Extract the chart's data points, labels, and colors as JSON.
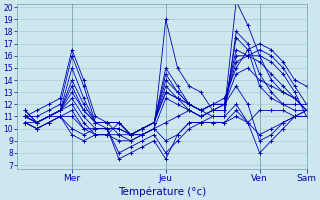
{
  "xlabel": "Température (°c)",
  "bg_color": "#cce8ee",
  "grid_color": "#aacdd5",
  "line_color": "#0000bb",
  "marker": "+",
  "ylim": [
    7,
    20
  ],
  "yticks": [
    7,
    8,
    9,
    10,
    11,
    12,
    13,
    14,
    15,
    16,
    17,
    18,
    19,
    20
  ],
  "xlim": [
    0,
    72
  ],
  "day_ticks": [
    12,
    36,
    60,
    72
  ],
  "day_labels": [
    "Mer",
    "Jeu",
    "Ven",
    "Sam"
  ],
  "series": [
    {
      "start": 0,
      "points": [
        [
          0,
          11.0
        ],
        [
          3,
          11.5
        ],
        [
          6,
          12.0
        ],
        [
          9,
          12.5
        ],
        [
          12,
          16.5
        ],
        [
          15,
          14.0
        ],
        [
          18,
          11.0
        ],
        [
          21,
          10.5
        ],
        [
          24,
          9.5
        ],
        [
          27,
          9.0
        ],
        [
          30,
          9.5
        ],
        [
          33,
          10.0
        ],
        [
          36,
          19.0
        ],
        [
          39,
          15.0
        ],
        [
          42,
          13.5
        ],
        [
          45,
          13.0
        ],
        [
          48,
          11.5
        ],
        [
          51,
          11.5
        ],
        [
          54,
          20.5
        ],
        [
          57,
          18.5
        ],
        [
          60,
          16.0
        ],
        [
          63,
          14.0
        ],
        [
          66,
          13.0
        ],
        [
          69,
          12.5
        ],
        [
          72,
          11.5
        ]
      ]
    },
    {
      "start": 0,
      "points": [
        [
          0,
          11.0
        ],
        [
          3,
          11.0
        ],
        [
          6,
          11.5
        ],
        [
          9,
          12.0
        ],
        [
          12,
          16.0
        ],
        [
          15,
          13.5
        ],
        [
          18,
          10.5
        ],
        [
          21,
          10.0
        ],
        [
          24,
          10.0
        ],
        [
          27,
          9.5
        ],
        [
          30,
          10.0
        ],
        [
          33,
          10.5
        ],
        [
          36,
          14.5
        ],
        [
          39,
          13.0
        ],
        [
          42,
          12.0
        ],
        [
          45,
          11.5
        ],
        [
          48,
          11.0
        ],
        [
          51,
          11.0
        ],
        [
          54,
          18.0
        ],
        [
          57,
          17.0
        ],
        [
          60,
          14.5
        ],
        [
          63,
          13.0
        ],
        [
          66,
          12.0
        ],
        [
          69,
          11.5
        ],
        [
          72,
          11.5
        ]
      ]
    },
    {
      "start": 0,
      "points": [
        [
          0,
          11.0
        ],
        [
          3,
          10.5
        ],
        [
          6,
          11.0
        ],
        [
          9,
          11.5
        ],
        [
          12,
          15.0
        ],
        [
          15,
          12.5
        ],
        [
          18,
          10.5
        ],
        [
          21,
          10.5
        ],
        [
          24,
          10.5
        ],
        [
          27,
          9.5
        ],
        [
          30,
          10.0
        ],
        [
          33,
          10.5
        ],
        [
          36,
          13.0
        ],
        [
          39,
          12.5
        ],
        [
          42,
          11.5
        ],
        [
          45,
          11.0
        ],
        [
          48,
          11.5
        ],
        [
          51,
          11.5
        ],
        [
          54,
          17.5
        ],
        [
          57,
          16.5
        ],
        [
          60,
          13.5
        ],
        [
          63,
          12.5
        ],
        [
          66,
          12.0
        ],
        [
          69,
          12.0
        ],
        [
          72,
          12.0
        ]
      ]
    },
    {
      "start": 0,
      "points": [
        [
          0,
          11.0
        ],
        [
          3,
          10.5
        ],
        [
          6,
          11.0
        ],
        [
          9,
          11.5
        ],
        [
          12,
          14.0
        ],
        [
          15,
          12.0
        ],
        [
          18,
          10.5
        ],
        [
          21,
          10.5
        ],
        [
          24,
          10.5
        ],
        [
          27,
          9.5
        ],
        [
          30,
          10.0
        ],
        [
          33,
          10.5
        ],
        [
          36,
          15.0
        ],
        [
          39,
          13.5
        ],
        [
          42,
          12.0
        ],
        [
          45,
          11.5
        ],
        [
          48,
          12.0
        ],
        [
          51,
          12.0
        ],
        [
          54,
          16.5
        ],
        [
          57,
          16.0
        ],
        [
          60,
          15.5
        ],
        [
          63,
          14.5
        ],
        [
          66,
          13.5
        ],
        [
          69,
          12.5
        ],
        [
          72,
          11.5
        ]
      ]
    },
    {
      "start": 0,
      "points": [
        [
          0,
          11.0
        ],
        [
          3,
          10.5
        ],
        [
          6,
          11.0
        ],
        [
          9,
          11.5
        ],
        [
          12,
          13.5
        ],
        [
          15,
          11.5
        ],
        [
          18,
          10.5
        ],
        [
          21,
          10.5
        ],
        [
          24,
          10.5
        ],
        [
          27,
          9.5
        ],
        [
          30,
          10.0
        ],
        [
          33,
          10.5
        ],
        [
          36,
          14.0
        ],
        [
          39,
          13.0
        ],
        [
          42,
          12.0
        ],
        [
          45,
          11.5
        ],
        [
          48,
          12.0
        ],
        [
          51,
          12.0
        ],
        [
          54,
          16.0
        ],
        [
          57,
          16.0
        ],
        [
          60,
          16.0
        ],
        [
          63,
          15.5
        ],
        [
          66,
          14.5
        ],
        [
          69,
          13.0
        ],
        [
          72,
          11.0
        ]
      ]
    },
    {
      "start": 0,
      "points": [
        [
          0,
          11.0
        ],
        [
          3,
          10.5
        ],
        [
          6,
          11.0
        ],
        [
          9,
          11.5
        ],
        [
          12,
          13.0
        ],
        [
          15,
          11.5
        ],
        [
          18,
          10.5
        ],
        [
          21,
          10.5
        ],
        [
          24,
          10.5
        ],
        [
          27,
          9.5
        ],
        [
          30,
          10.0
        ],
        [
          33,
          10.5
        ],
        [
          36,
          13.5
        ],
        [
          39,
          12.5
        ],
        [
          42,
          12.0
        ],
        [
          45,
          11.5
        ],
        [
          48,
          12.0
        ],
        [
          51,
          12.0
        ],
        [
          54,
          15.5
        ],
        [
          57,
          16.0
        ],
        [
          60,
          16.5
        ],
        [
          63,
          16.0
        ],
        [
          66,
          15.0
        ],
        [
          69,
          13.5
        ],
        [
          72,
          12.0
        ]
      ]
    },
    {
      "start": 0,
      "points": [
        [
          0,
          11.5
        ],
        [
          3,
          10.5
        ],
        [
          6,
          11.0
        ],
        [
          9,
          11.5
        ],
        [
          12,
          12.5
        ],
        [
          15,
          11.0
        ],
        [
          18,
          10.0
        ],
        [
          21,
          10.0
        ],
        [
          24,
          10.0
        ],
        [
          27,
          9.5
        ],
        [
          30,
          10.0
        ],
        [
          33,
          10.5
        ],
        [
          36,
          13.0
        ],
        [
          39,
          12.5
        ],
        [
          42,
          12.0
        ],
        [
          45,
          11.5
        ],
        [
          48,
          12.0
        ],
        [
          51,
          12.5
        ],
        [
          54,
          15.0
        ],
        [
          57,
          16.5
        ],
        [
          60,
          17.0
        ],
        [
          63,
          16.5
        ],
        [
          66,
          15.5
        ],
        [
          69,
          14.0
        ],
        [
          72,
          13.5
        ]
      ]
    },
    {
      "start": 0,
      "points": [
        [
          0,
          11.5
        ],
        [
          3,
          10.5
        ],
        [
          6,
          11.0
        ],
        [
          9,
          11.5
        ],
        [
          12,
          12.0
        ],
        [
          15,
          10.5
        ],
        [
          18,
          9.5
        ],
        [
          21,
          9.5
        ],
        [
          24,
          9.5
        ],
        [
          27,
          9.5
        ],
        [
          30,
          9.5
        ],
        [
          33,
          10.0
        ],
        [
          36,
          12.5
        ],
        [
          39,
          12.0
        ],
        [
          42,
          11.5
        ],
        [
          45,
          11.0
        ],
        [
          48,
          11.5
        ],
        [
          51,
          12.0
        ],
        [
          54,
          14.5
        ],
        [
          57,
          15.0
        ],
        [
          60,
          14.0
        ],
        [
          63,
          13.5
        ],
        [
          66,
          13.0
        ],
        [
          69,
          12.5
        ],
        [
          72,
          11.5
        ]
      ]
    },
    {
      "start": 0,
      "points": [
        [
          0,
          10.5
        ],
        [
          3,
          10.5
        ],
        [
          6,
          11.0
        ],
        [
          9,
          11.0
        ],
        [
          12,
          11.5
        ],
        [
          15,
          10.0
        ],
        [
          18,
          9.5
        ],
        [
          21,
          9.5
        ],
        [
          24,
          10.5
        ],
        [
          27,
          9.5
        ],
        [
          30,
          9.5
        ],
        [
          33,
          10.0
        ],
        [
          36,
          10.5
        ],
        [
          39,
          11.0
        ],
        [
          42,
          11.5
        ],
        [
          45,
          11.0
        ],
        [
          48,
          11.5
        ],
        [
          51,
          12.0
        ],
        [
          54,
          13.5
        ],
        [
          57,
          12.0
        ],
        [
          60,
          9.0
        ],
        [
          63,
          9.5
        ],
        [
          66,
          10.5
        ],
        [
          69,
          11.0
        ],
        [
          72,
          11.5
        ]
      ]
    },
    {
      "start": 0,
      "points": [
        [
          0,
          10.5
        ],
        [
          3,
          10.0
        ],
        [
          6,
          10.5
        ],
        [
          9,
          11.0
        ],
        [
          12,
          11.0
        ],
        [
          15,
          10.0
        ],
        [
          18,
          10.0
        ],
        [
          21,
          10.0
        ],
        [
          24,
          7.5
        ],
        [
          27,
          8.0
        ],
        [
          30,
          8.5
        ],
        [
          33,
          9.0
        ],
        [
          36,
          7.5
        ],
        [
          39,
          9.5
        ],
        [
          42,
          10.5
        ],
        [
          45,
          10.5
        ],
        [
          48,
          11.0
        ],
        [
          51,
          11.0
        ],
        [
          54,
          12.0
        ],
        [
          57,
          10.5
        ],
        [
          60,
          8.0
        ],
        [
          63,
          9.0
        ],
        [
          66,
          10.0
        ],
        [
          69,
          11.0
        ],
        [
          72,
          11.5
        ]
      ]
    },
    {
      "start": 0,
      "points": [
        [
          0,
          10.5
        ],
        [
          3,
          10.0
        ],
        [
          6,
          10.5
        ],
        [
          9,
          11.0
        ],
        [
          12,
          10.0
        ],
        [
          15,
          9.5
        ],
        [
          18,
          10.0
        ],
        [
          21,
          10.0
        ],
        [
          24,
          8.0
        ],
        [
          27,
          8.5
        ],
        [
          30,
          9.0
        ],
        [
          33,
          9.5
        ],
        [
          36,
          8.0
        ],
        [
          39,
          9.0
        ],
        [
          42,
          10.0
        ],
        [
          45,
          10.5
        ],
        [
          48,
          10.5
        ],
        [
          51,
          10.5
        ],
        [
          54,
          11.5
        ],
        [
          57,
          10.5
        ],
        [
          60,
          9.5
        ],
        [
          63,
          10.0
        ],
        [
          66,
          10.5
        ],
        [
          69,
          11.0
        ],
        [
          72,
          11.0
        ]
      ]
    },
    {
      "start": 0,
      "points": [
        [
          0,
          10.5
        ],
        [
          3,
          10.0
        ],
        [
          6,
          10.5
        ],
        [
          9,
          11.0
        ],
        [
          12,
          9.5
        ],
        [
          15,
          9.0
        ],
        [
          18,
          9.5
        ],
        [
          21,
          9.5
        ],
        [
          24,
          9.0
        ],
        [
          27,
          9.0
        ],
        [
          30,
          9.5
        ],
        [
          33,
          10.0
        ],
        [
          36,
          9.0
        ],
        [
          39,
          9.5
        ],
        [
          42,
          10.5
        ],
        [
          45,
          10.5
        ],
        [
          48,
          10.5
        ],
        [
          51,
          10.5
        ],
        [
          54,
          11.0
        ],
        [
          57,
          10.5
        ],
        [
          60,
          11.5
        ],
        [
          63,
          11.5
        ],
        [
          66,
          11.5
        ],
        [
          69,
          11.0
        ],
        [
          72,
          11.0
        ]
      ]
    }
  ]
}
